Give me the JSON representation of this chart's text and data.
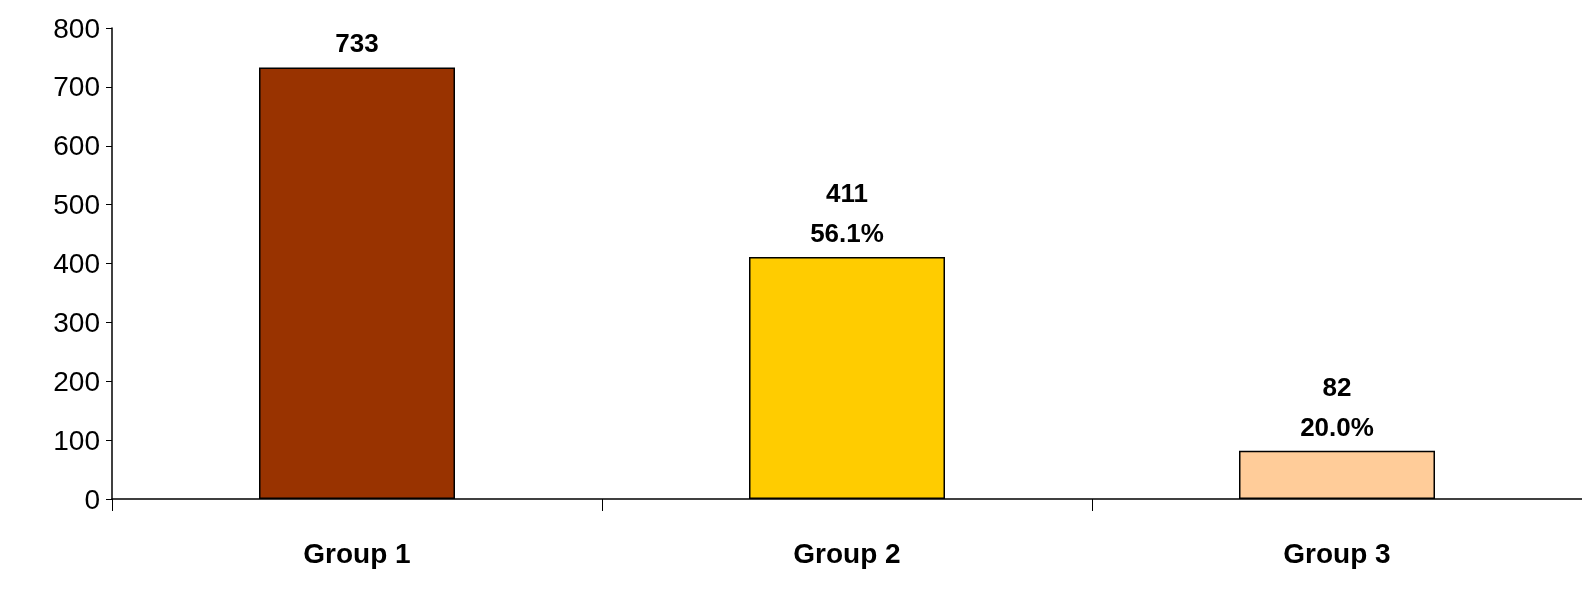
{
  "chart_data": {
    "type": "bar",
    "categories": [
      "Group 1",
      "Group 2",
      "Group 3"
    ],
    "values": [
      733,
      411,
      82
    ],
    "colors": [
      "#993300",
      "#ffcc00",
      "#ffcc99"
    ],
    "value_labels": [
      "733",
      "411\n56.1%",
      "82\n20.0%"
    ],
    "ylim": [
      0,
      800
    ],
    "yticks": [
      0,
      100,
      200,
      300,
      400,
      500,
      600,
      700,
      800
    ],
    "grid": false
  }
}
